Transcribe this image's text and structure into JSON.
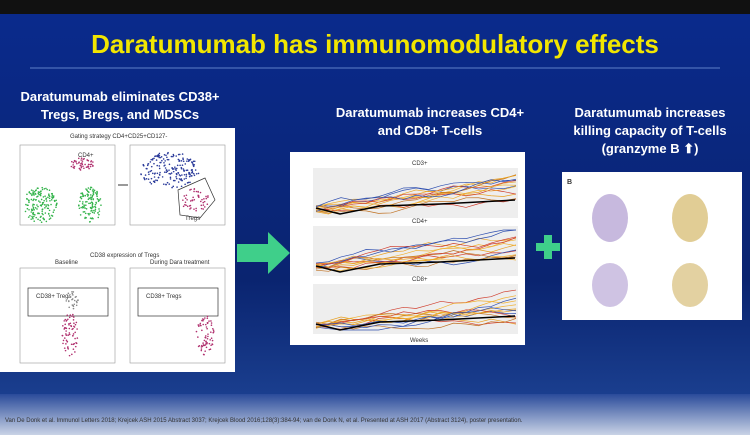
{
  "header": {
    "title": "Daratumumab has immunomodulatory effects"
  },
  "columns": [
    {
      "heading": [
        "Daratumumab eliminates CD38+",
        "Tregs, Bregs, and MDSCs"
      ],
      "figure": {
        "labels": [
          "Gating strategy CD4+CD25+CD127-",
          "CD4+",
          "Tregs",
          "CD38 expression of Tregs",
          "Baseline",
          "During Dara treatment",
          "CD38+ Tregs",
          "CD38+ Tregs"
        ]
      }
    },
    {
      "heading": [
        "Daratumumab increases CD4+",
        "and CD8+ T-cells"
      ],
      "figure": {
        "labels": [
          "CD3+",
          "CD4+",
          "CD8+",
          "Weeks"
        ]
      }
    },
    {
      "heading": [
        "Daratumumab increases",
        "killing capacity of T-cells",
        "(granzyme B ⬆)"
      ],
      "figure": {
        "labels": [
          "B"
        ]
      }
    }
  ],
  "footer": {
    "citation": "Van De Donk et al. Immunol Letters 2018; Krejcek ASH 2015 Abstract 3037; Krejcek Blood 2016;128(3):384-94; van de Donk N, et al. Presented at ASH 2017 (Abstract 3124), poster presentation."
  }
}
